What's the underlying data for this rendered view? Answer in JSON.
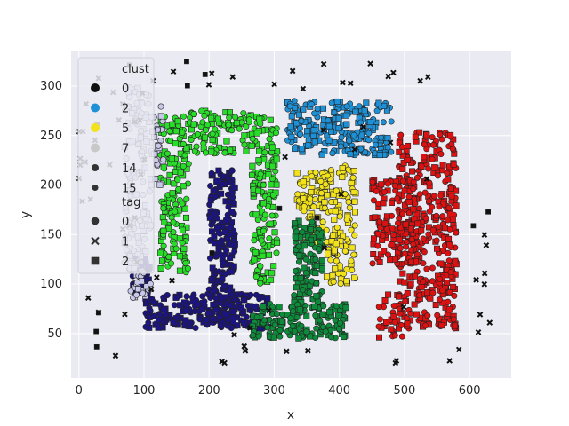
{
  "chart_data": {
    "type": "scatter",
    "title": "",
    "xlabel": "x",
    "ylabel": "y",
    "xlim": [
      -12,
      664
    ],
    "ylim": [
      5,
      335
    ],
    "xticks": [
      0,
      100,
      200,
      300,
      400,
      500,
      600
    ],
    "yticks": [
      50,
      100,
      150,
      200,
      250,
      300
    ],
    "grid": true,
    "legend_position": "top-left",
    "legend": {
      "hue_title": "clust",
      "hue_entries": [
        {
          "label": "0",
          "color": "#111111",
          "size": 7
        },
        {
          "label": "2",
          "color": "#1e90d6",
          "size": 7
        },
        {
          "label": "5",
          "color": "#f2e21b",
          "size": 7
        },
        {
          "label": "7",
          "color": "#c8c8c8",
          "size": 7
        },
        {
          "label": "14",
          "color": "#333333",
          "size": 5
        },
        {
          "label": "15",
          "color": "#333333",
          "size": 4
        }
      ],
      "style_title": "tag",
      "style_entries": [
        {
          "label": "0",
          "marker": "circle"
        },
        {
          "label": "1",
          "marker": "x"
        },
        {
          "label": "2",
          "marker": "square"
        }
      ]
    },
    "colors": {
      "background": "#eaeaf2",
      "grid": "#ffffff",
      "edge": "#222222",
      "noise": "#111111",
      "c2": "#1e90d6",
      "c5": "#f2e21b",
      "c7": "#c8c8e8",
      "c_navy": "#1c1480",
      "c_lime": "#28dd28",
      "c_dkgreen": "#0d8a3a",
      "c_red": "#dd1111"
    },
    "series": [
      {
        "color": "c_lime",
        "regions": [
          [
            125,
            170,
            110,
            270
          ],
          [
            170,
            265,
            232,
            275
          ],
          [
            265,
            305,
            100,
            270
          ]
        ],
        "n": 420
      },
      {
        "color": "c_navy",
        "regions": [
          [
            200,
            240,
            60,
            215
          ],
          [
            100,
            290,
            55,
            90
          ],
          [
            80,
            110,
            90,
            130
          ]
        ],
        "n": 480
      },
      {
        "color": "c7",
        "regions": [
          [
            70,
            110,
            85,
            300
          ],
          [
            110,
            130,
            200,
            280
          ]
        ],
        "n": 180
      },
      {
        "color": "c2",
        "regions": [
          [
            320,
            480,
            230,
            285
          ]
        ],
        "n": 230
      },
      {
        "color": "c5",
        "regions": [
          [
            335,
            380,
            175,
            215
          ],
          [
            380,
            425,
            100,
            220
          ],
          [
            345,
            375,
            140,
            180
          ]
        ],
        "n": 210
      },
      {
        "color": "c_dkgreen",
        "regions": [
          [
            265,
            410,
            45,
            80
          ],
          [
            330,
            375,
            80,
            165
          ]
        ],
        "n": 300
      },
      {
        "color": "c_red",
        "regions": [
          [
            450,
            520,
            120,
            205
          ],
          [
            490,
            580,
            55,
            255
          ],
          [
            460,
            500,
            45,
            90
          ]
        ],
        "n": 560
      },
      {
        "color": "noise",
        "regions": [
          [
            0,
            640,
            20,
            325
          ]
        ],
        "n": 190
      }
    ]
  }
}
